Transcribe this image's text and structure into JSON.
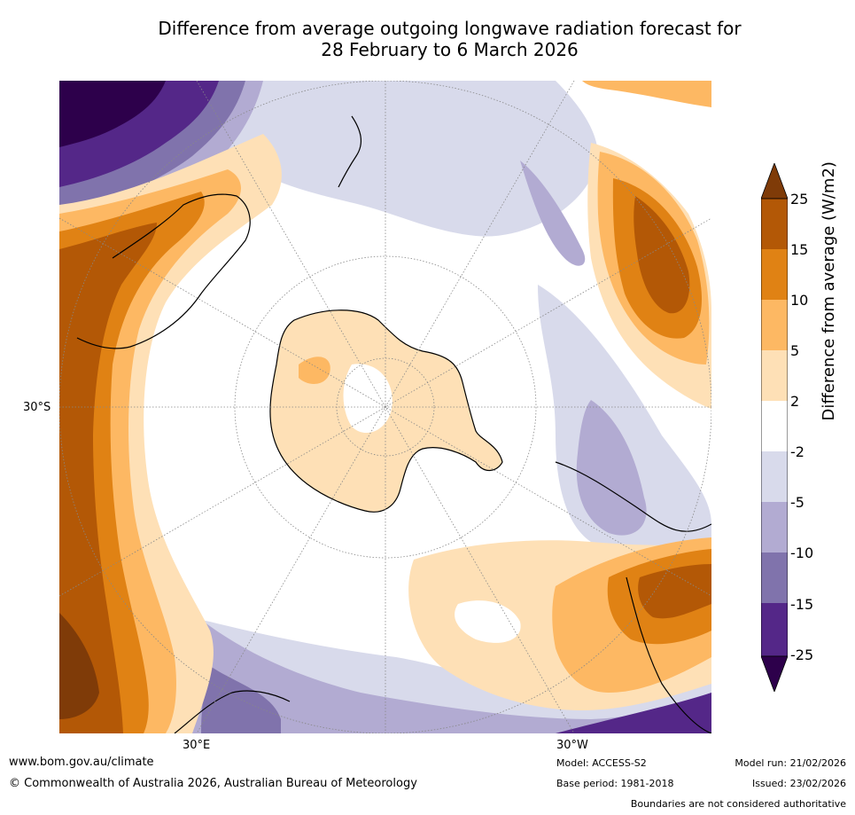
{
  "title": {
    "line1": "Difference from average outgoing longwave radiation forecast for",
    "line2": "28 February to 6 March 2026"
  },
  "map": {
    "lat_label_left": "30°S",
    "lon_label_bottom_left": "30°E",
    "lon_label_bottom_right": "30°W",
    "projection": "south polar stereographic"
  },
  "colorbar": {
    "label": "Difference from average (W/m2)",
    "ticks": [
      "25",
      "15",
      "10",
      "5",
      "2",
      "-2",
      "-5",
      "-10",
      "-15",
      "-25"
    ],
    "colors": {
      "over": "#7f3b08",
      "b15_25": "#b35806",
      "b10_15": "#e08214",
      "b5_10": "#fdb863",
      "b2_5": "#fee0b6",
      "neutral": "#ffffff",
      "m2_m5": "#d8daeb",
      "m5_m10": "#b2abd2",
      "m10_m15": "#8073ac",
      "m15_m25": "#542788",
      "under": "#2d004b"
    }
  },
  "footer": {
    "website": "www.bom.gov.au/climate",
    "copyright": "© Commonwealth of Australia 2026, Australian Bureau of Meteorology",
    "model": "Model: ACCESS-S2",
    "base_period": "Base period: 1981-2018",
    "model_run": "Model run: 21/02/2026",
    "issued": "Issued: 23/02/2026",
    "disclaimer": "Boundaries are not considered authoritative"
  }
}
